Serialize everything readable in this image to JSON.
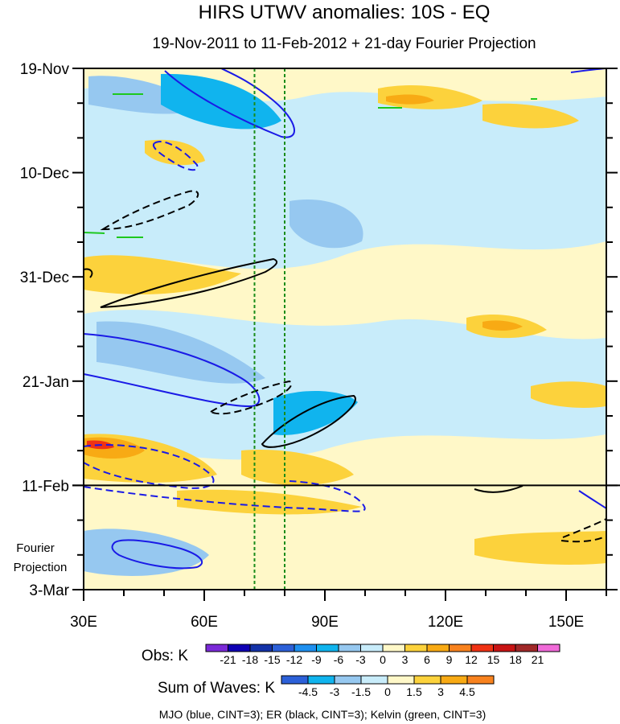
{
  "chart_data": {
    "type": "heatmap",
    "title": "HIRS UTWV anomalies: 10S - EQ",
    "subtitle": "19-Nov-2011 to 11-Feb-2012 + 21-day Fourier Projection",
    "xlabel": "",
    "ylabel": "",
    "x_ticks": [
      "30E",
      "60E",
      "90E",
      "120E",
      "150E"
    ],
    "x_tick_values": [
      30,
      60,
      90,
      120,
      150
    ],
    "xlim": [
      30,
      160
    ],
    "y_ticks": [
      "19-Nov",
      "10-Dec",
      "31-Dec",
      "21-Jan",
      "11-Feb",
      "3-Mar"
    ],
    "y_tick_days": [
      0,
      21,
      42,
      63,
      84,
      105
    ],
    "ylim_days": [
      0,
      105
    ],
    "projection_start_day": 84,
    "projection_label_line1": "Fourier",
    "projection_label_line2": "Projection",
    "reference_longitudes": [
      72.5,
      80
    ],
    "obs_legend": {
      "label": "Obs: K",
      "levels": [
        "-21",
        "-18",
        "-15",
        "-12",
        "-9",
        "-6",
        "-3",
        "0",
        "3",
        "6",
        "9",
        "12",
        "15",
        "18",
        "21"
      ],
      "colors": [
        "#7b2ad8",
        "#0f00b4",
        "#1432a8",
        "#2c60d8",
        "#1e90f0",
        "#10b4ee",
        "#96c8f0",
        "#c8ecfa",
        "#fff8c8",
        "#fcd23c",
        "#f8aa14",
        "#f8821e",
        "#f03214",
        "#c81414",
        "#a02828",
        "#f06ad8"
      ]
    },
    "waves_legend": {
      "label": "Sum of Waves: K",
      "levels": [
        "-4.5",
        "-3",
        "-1.5",
        "0",
        "1.5",
        "3",
        "4.5"
      ],
      "colors": [
        "#2c60d8",
        "#10b4ee",
        "#96c8f0",
        "#c8ecfa",
        "#fff8c8",
        "#fcd23c",
        "#f8aa14",
        "#f8821e"
      ]
    },
    "footer": "MJO (blue, CINT=3); ER (black, CINT=3); Kelvin (green, CINT=3)"
  }
}
